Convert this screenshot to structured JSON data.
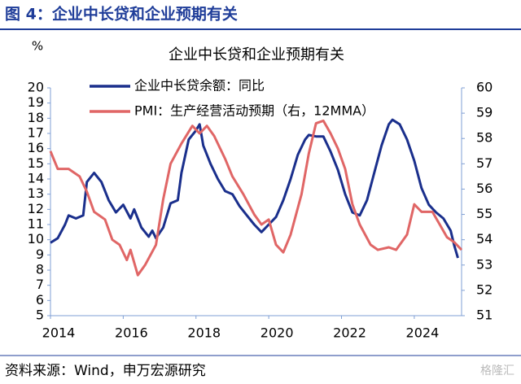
{
  "header": {
    "title": "图 4：企业中长贷和企业预期有关"
  },
  "chart_data": {
    "type": "line",
    "title": "企业中长贷和企业预期有关",
    "y_unit": "%",
    "xlim": [
      2014,
      2025.3
    ],
    "xticks": [
      2014,
      2016,
      2018,
      2020,
      2022,
      2024
    ],
    "ylim": [
      5,
      20
    ],
    "yticks": [
      5,
      6,
      7,
      8,
      9,
      10,
      11,
      12,
      13,
      14,
      15,
      16,
      17,
      18,
      19,
      20
    ],
    "y2lim": [
      51,
      60
    ],
    "y2ticks": [
      51,
      52,
      53,
      54,
      55,
      56,
      57,
      58,
      59,
      60
    ],
    "series": [
      {
        "name": "企业中长贷余额：同比",
        "color": "#1a2f8c",
        "x": [
          2014.0,
          2014.2,
          2014.4,
          2014.5,
          2014.7,
          2014.9,
          2015.0,
          2015.2,
          2015.4,
          2015.6,
          2015.8,
          2016.0,
          2016.2,
          2016.3,
          2016.5,
          2016.7,
          2016.8,
          2016.9,
          2017.1,
          2017.3,
          2017.5,
          2017.6,
          2017.8,
          2018.0,
          2018.1,
          2018.2,
          2018.4,
          2018.6,
          2018.8,
          2019.0,
          2019.2,
          2019.4,
          2019.6,
          2019.8,
          2020.0,
          2020.2,
          2020.4,
          2020.6,
          2020.8,
          2021.0,
          2021.1,
          2021.3,
          2021.5,
          2021.7,
          2021.9,
          2022.1,
          2022.3,
          2022.5,
          2022.7,
          2022.9,
          2023.1,
          2023.3,
          2023.4,
          2023.6,
          2023.8,
          2024.0,
          2024.2,
          2024.4,
          2024.6,
          2024.8,
          2025.0,
          2025.1,
          2025.2
        ],
        "values": [
          9.8,
          10.1,
          11.0,
          11.6,
          11.4,
          11.6,
          13.8,
          14.4,
          13.8,
          12.6,
          11.8,
          12.3,
          11.4,
          12.0,
          10.8,
          10.2,
          10.6,
          10.1,
          10.8,
          12.4,
          12.6,
          14.4,
          16.6,
          17.2,
          17.6,
          16.2,
          15.0,
          14.0,
          13.2,
          13.0,
          12.2,
          11.6,
          11.0,
          10.5,
          11.0,
          11.5,
          12.6,
          14.0,
          15.6,
          16.6,
          16.9,
          16.8,
          16.8,
          15.8,
          14.6,
          13.0,
          11.8,
          11.6,
          12.6,
          14.4,
          16.2,
          17.6,
          17.9,
          17.6,
          16.6,
          15.2,
          13.4,
          12.3,
          11.8,
          11.4,
          10.6,
          9.6,
          8.8
        ]
      },
      {
        "name": "PMI：生产经营活动预期（右，12MMA）",
        "color": "#e06666",
        "axis": "y2",
        "x": [
          2014.0,
          2014.2,
          2014.5,
          2014.8,
          2015.0,
          2015.2,
          2015.5,
          2015.7,
          2015.9,
          2016.1,
          2016.2,
          2016.4,
          2016.6,
          2016.9,
          2017.1,
          2017.3,
          2017.6,
          2017.9,
          2018.1,
          2018.3,
          2018.5,
          2018.8,
          2019.0,
          2019.3,
          2019.6,
          2019.8,
          2020.0,
          2020.2,
          2020.4,
          2020.6,
          2020.9,
          2021.1,
          2021.3,
          2021.5,
          2021.7,
          2021.9,
          2022.1,
          2022.3,
          2022.5,
          2022.8,
          2023.0,
          2023.3,
          2023.5,
          2023.8,
          2024.0,
          2024.2,
          2024.5,
          2024.7,
          2024.9,
          2025.1,
          2025.3
        ],
        "values": [
          57.5,
          56.8,
          56.8,
          56.5,
          55.9,
          55.1,
          54.8,
          54.0,
          53.8,
          53.2,
          53.6,
          52.6,
          53.0,
          53.8,
          55.6,
          57.0,
          57.8,
          58.5,
          58.2,
          58.5,
          58.1,
          57.2,
          56.5,
          55.8,
          55.0,
          54.6,
          54.8,
          53.8,
          53.5,
          54.2,
          55.8,
          57.4,
          58.6,
          58.7,
          58.2,
          57.6,
          56.8,
          55.4,
          54.6,
          53.8,
          53.6,
          53.7,
          53.6,
          54.2,
          55.4,
          55.1,
          55.1,
          54.6,
          54.1,
          53.9,
          53.6
        ]
      }
    ]
  },
  "footer": {
    "source": "资料来源：Wind，申万宏源研究",
    "watermark": "格隆汇"
  }
}
